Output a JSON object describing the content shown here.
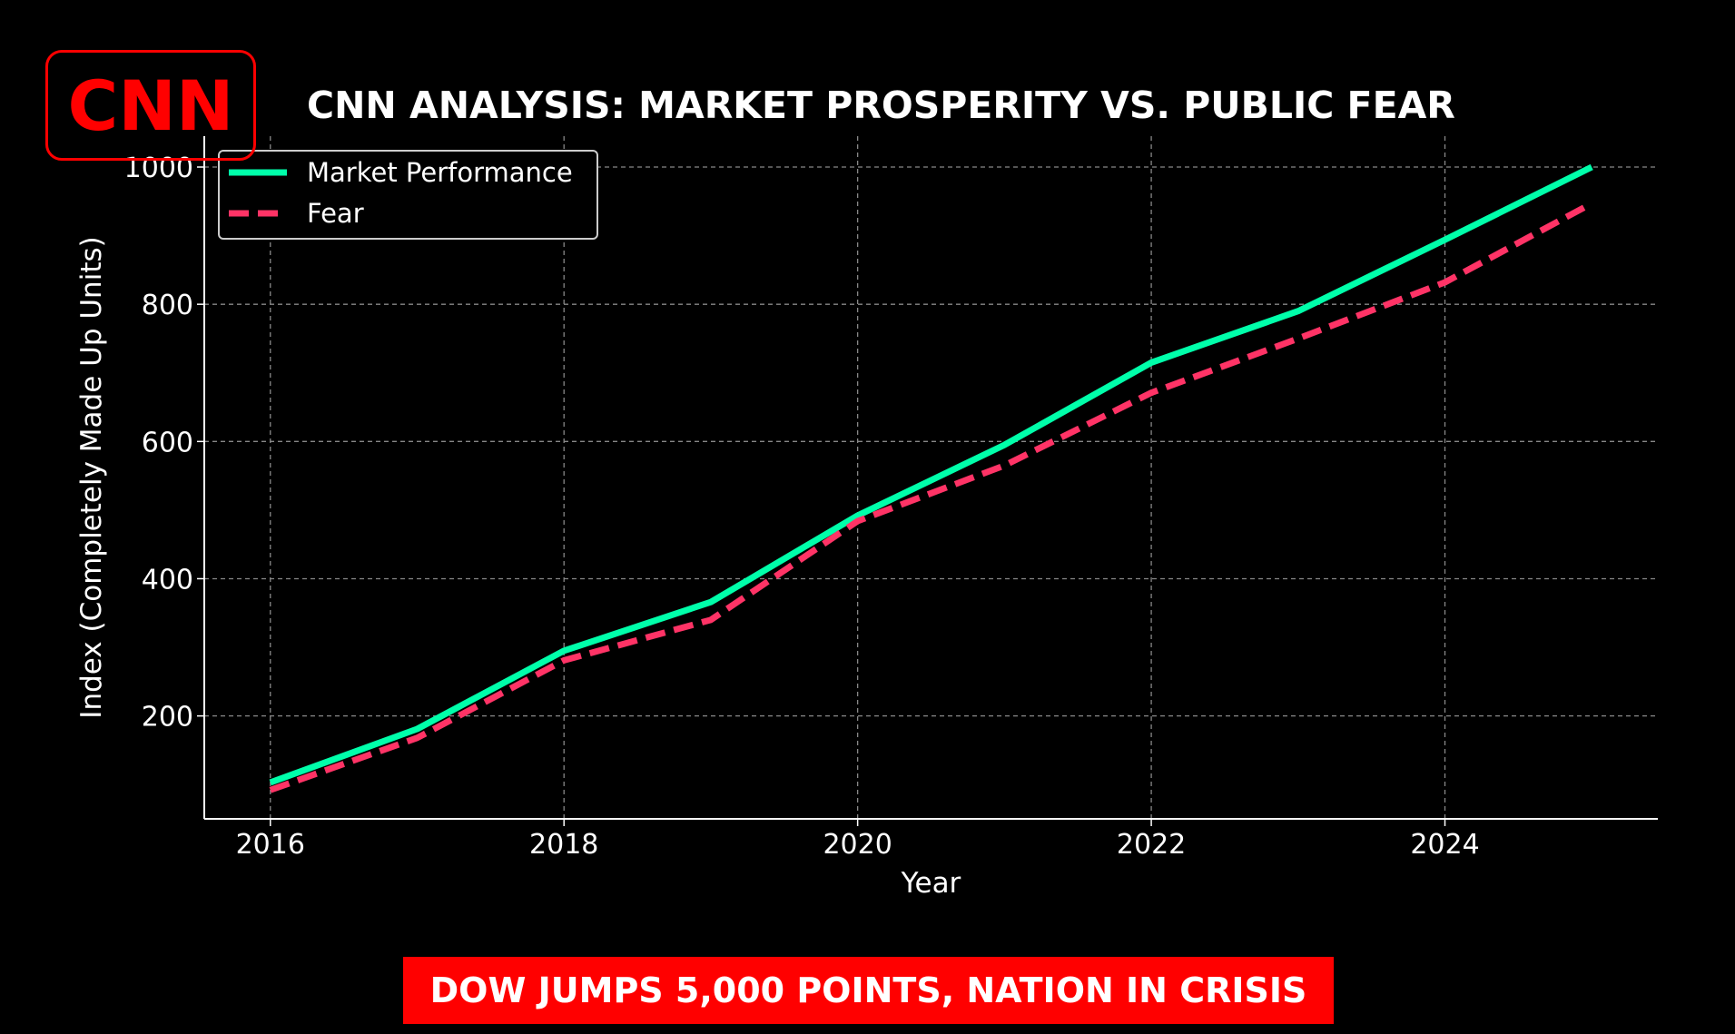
{
  "logo": {
    "text": "CNN",
    "color": "#ff0000"
  },
  "banner": {
    "text": "DOW JUMPS 5,000 POINTS, NATION IN CRISIS",
    "color": "#ff0000"
  },
  "chart_data": {
    "type": "line",
    "title": "CNN ANALYSIS: MARKET PROSPERITY VS. PUBLIC FEAR",
    "xlabel": "Year",
    "ylabel": "Index (Completely Made Up Units)",
    "x": [
      2016,
      2017,
      2018,
      2019,
      2020,
      2021,
      2022,
      2023,
      2024,
      2025
    ],
    "xticks": [
      "2016",
      "2018",
      "2020",
      "2022",
      "2024"
    ],
    "yticks": [
      "200",
      "400",
      "600",
      "800",
      "1000"
    ],
    "xlim": [
      2015.55,
      2025.45
    ],
    "ylim": [
      50,
      1045
    ],
    "grid": true,
    "legend": "top-left",
    "series": [
      {
        "name": "Market Performance",
        "color": "#00ffaa",
        "style": "solid",
        "values": [
          103,
          181,
          295,
          366,
          492,
          595,
          715,
          790,
          894,
          1000
        ]
      },
      {
        "name": "Fear",
        "color": "#ff3366",
        "style": "dashed",
        "values": [
          92,
          168,
          281,
          340,
          484,
          565,
          671,
          750,
          832,
          947
        ]
      }
    ]
  }
}
